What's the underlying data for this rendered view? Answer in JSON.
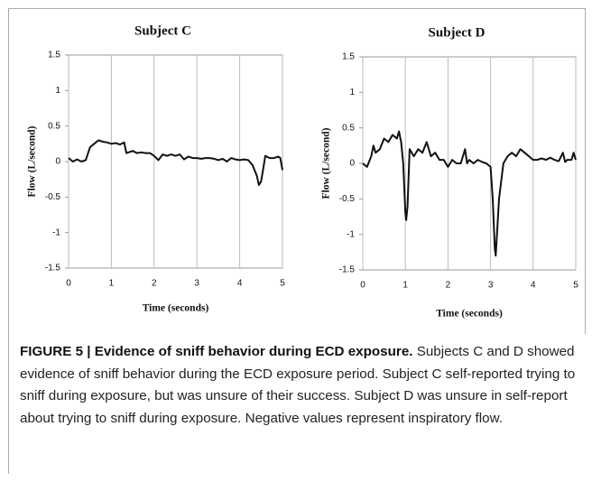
{
  "chart_data": [
    {
      "type": "line",
      "title": "Subject C",
      "xlabel": "Time (seconds)",
      "ylabel": "Flow (L/second)",
      "color": "#111111",
      "grid": "x",
      "xlim": [
        0,
        5
      ],
      "xticks": [
        0,
        1,
        2,
        3,
        4,
        5
      ],
      "ylim": [
        -1.5,
        1.5
      ],
      "yticks": [
        1.5,
        1,
        0.5,
        0,
        -0.5,
        -1,
        -1.5
      ],
      "x": [
        0,
        0.1,
        0.2,
        0.3,
        0.4,
        0.5,
        0.6,
        0.7,
        0.8,
        0.9,
        1.0,
        1.1,
        1.2,
        1.3,
        1.35,
        1.4,
        1.5,
        1.6,
        1.7,
        1.8,
        1.9,
        2.0,
        2.1,
        2.2,
        2.3,
        2.4,
        2.5,
        2.6,
        2.7,
        2.8,
        2.9,
        3.0,
        3.1,
        3.2,
        3.3,
        3.4,
        3.5,
        3.6,
        3.7,
        3.8,
        3.9,
        4.0,
        4.1,
        4.2,
        4.3,
        4.4,
        4.45,
        4.5,
        4.55,
        4.6,
        4.7,
        4.8,
        4.9,
        4.95,
        5.0
      ],
      "values": [
        0.05,
        0.0,
        0.03,
        0.0,
        0.02,
        0.2,
        0.25,
        0.3,
        0.28,
        0.27,
        0.25,
        0.26,
        0.24,
        0.27,
        0.12,
        0.13,
        0.15,
        0.12,
        0.13,
        0.12,
        0.12,
        0.08,
        0.02,
        0.1,
        0.08,
        0.1,
        0.08,
        0.1,
        0.03,
        0.07,
        0.05,
        0.05,
        0.04,
        0.05,
        0.05,
        0.04,
        0.02,
        0.04,
        0.0,
        0.05,
        0.03,
        0.02,
        0.03,
        0.02,
        -0.05,
        -0.2,
        -0.33,
        -0.28,
        -0.1,
        0.08,
        0.05,
        0.05,
        0.07,
        0.05,
        -0.12
      ]
    },
    {
      "type": "line",
      "title": "Subject D",
      "xlabel": "Time (seconds)",
      "ylabel": "Flow (L/second)",
      "color": "#111111",
      "grid": "x",
      "xlim": [
        0,
        5
      ],
      "xticks": [
        0,
        1,
        2,
        3,
        4,
        5
      ],
      "ylim": [
        -1.5,
        1.5
      ],
      "yticks": [
        1.5,
        1,
        0.5,
        0,
        -0.5,
        -1,
        -1.5
      ],
      "x": [
        0,
        0.1,
        0.2,
        0.25,
        0.3,
        0.4,
        0.5,
        0.6,
        0.7,
        0.8,
        0.85,
        0.9,
        0.95,
        1.0,
        1.02,
        1.05,
        1.1,
        1.2,
        1.3,
        1.4,
        1.5,
        1.6,
        1.7,
        1.8,
        1.9,
        2.0,
        2.1,
        2.2,
        2.3,
        2.4,
        2.45,
        2.5,
        2.6,
        2.7,
        2.8,
        2.9,
        3.0,
        3.05,
        3.1,
        3.12,
        3.15,
        3.2,
        3.3,
        3.4,
        3.5,
        3.6,
        3.7,
        3.8,
        3.9,
        4.0,
        4.1,
        4.2,
        4.3,
        4.4,
        4.5,
        4.6,
        4.7,
        4.75,
        4.8,
        4.9,
        4.95,
        5.0
      ],
      "values": [
        0.0,
        -0.05,
        0.1,
        0.25,
        0.15,
        0.2,
        0.35,
        0.3,
        0.4,
        0.35,
        0.45,
        0.3,
        0.0,
        -0.7,
        -0.8,
        -0.6,
        0.2,
        0.1,
        0.2,
        0.15,
        0.3,
        0.1,
        0.15,
        0.05,
        0.05,
        -0.05,
        0.05,
        0.0,
        0.0,
        0.2,
        0.0,
        0.05,
        0.0,
        0.05,
        0.02,
        0.0,
        -0.05,
        -0.5,
        -1.2,
        -1.3,
        -1.0,
        -0.5,
        0.0,
        0.1,
        0.15,
        0.1,
        0.2,
        0.15,
        0.1,
        0.05,
        0.05,
        0.07,
        0.05,
        0.08,
        0.05,
        0.03,
        0.15,
        0.02,
        0.05,
        0.05,
        0.15,
        0.05
      ]
    }
  ],
  "caption": {
    "label": "FIGURE 5 | Evidence of sniff behavior during ECD exposure.",
    "text": "Subjects C and D showed evidence of sniff behavior during the ECD exposure period. Subject C self-reported trying to sniff during exposure, but was unsure of their success. Subject D was unsure in self-report about trying to sniff during exposure. Negative values represent inspiratory flow."
  }
}
